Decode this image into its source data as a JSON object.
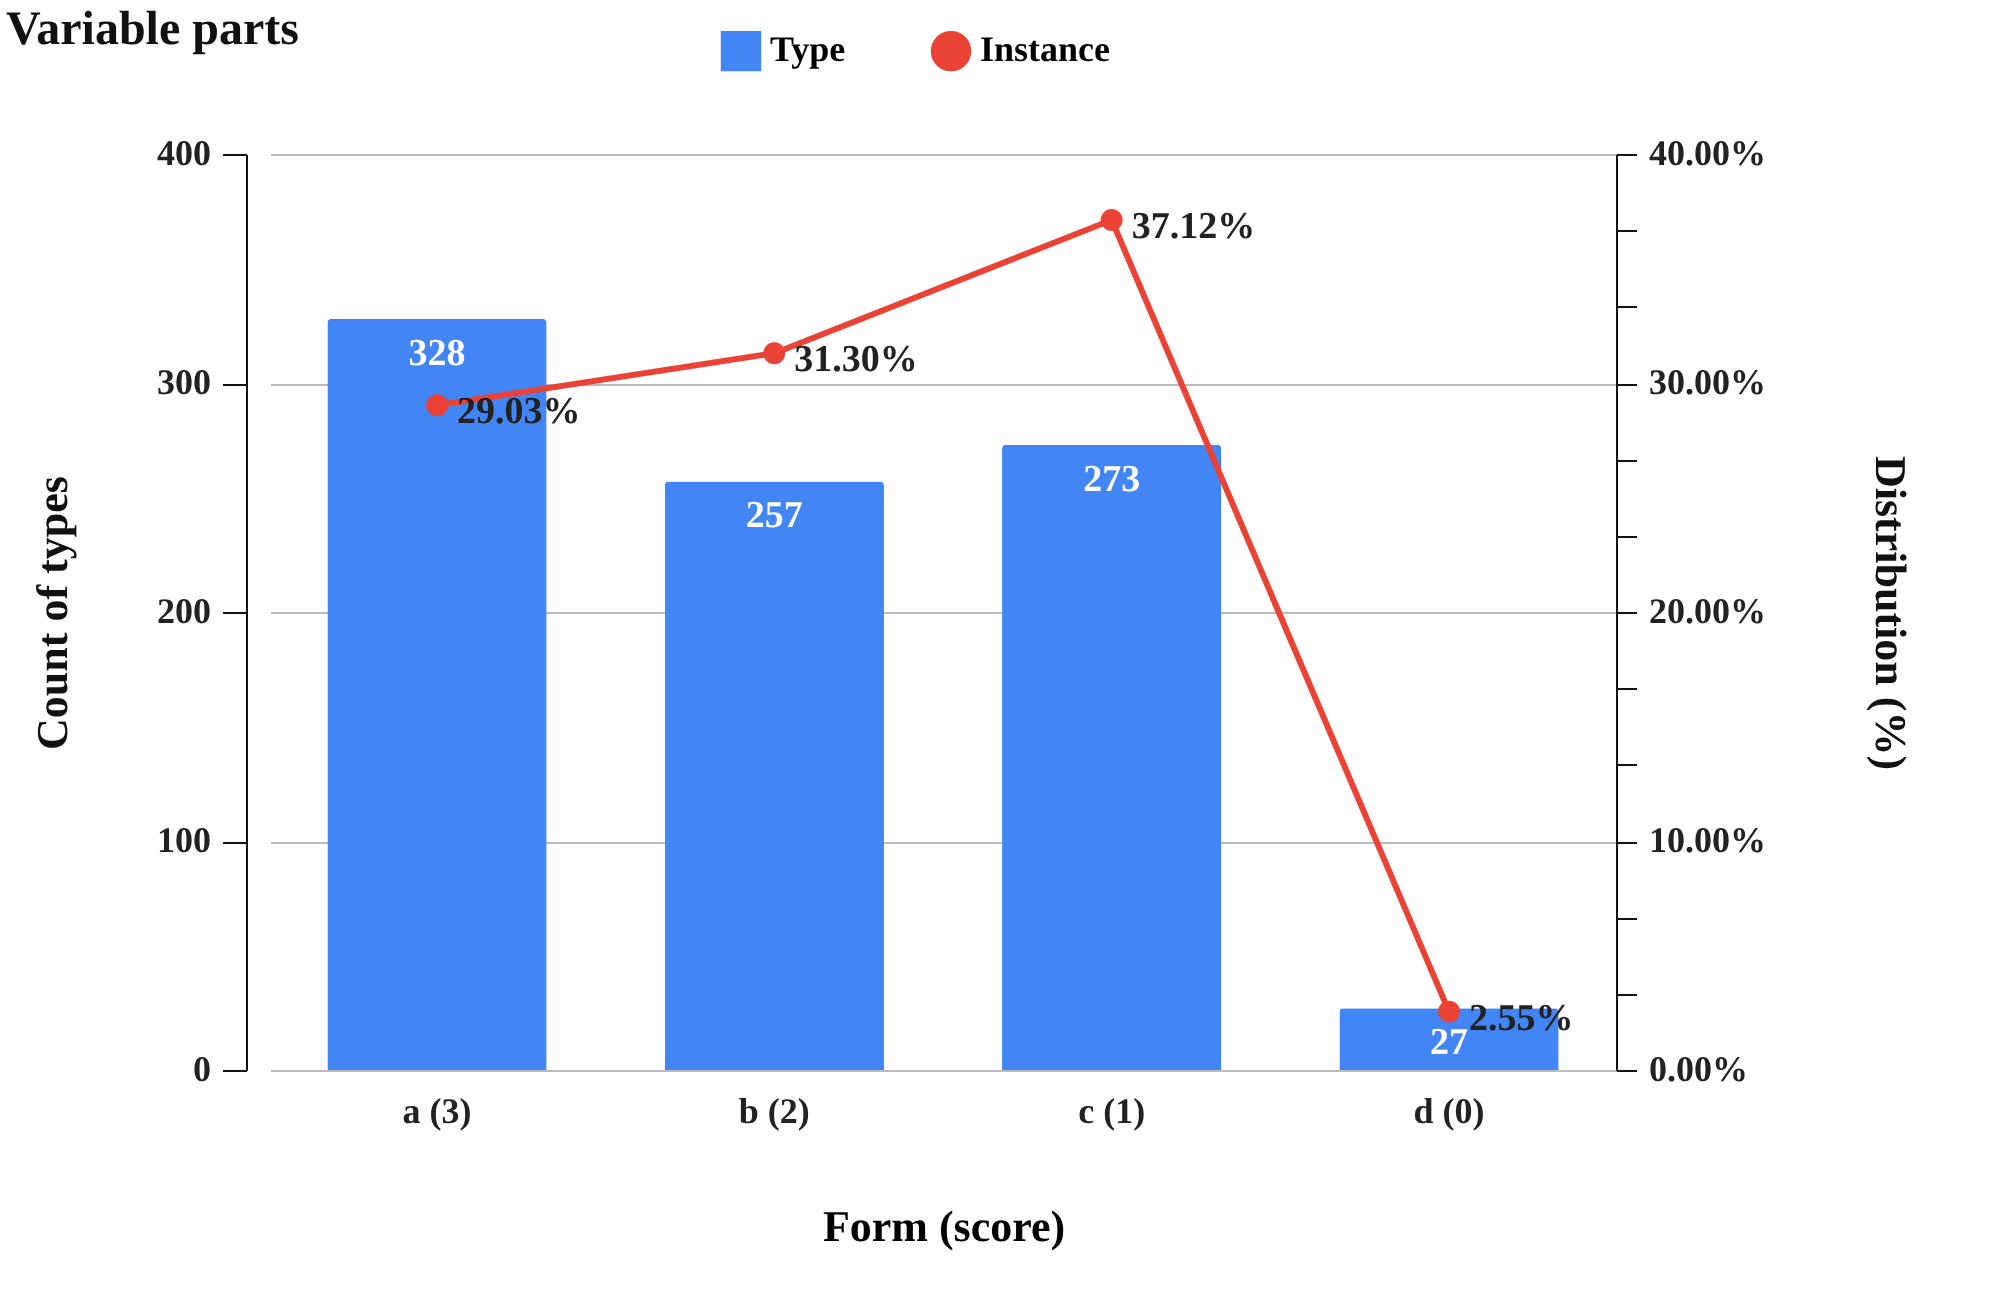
{
  "chart_data": {
    "type": "bar",
    "title": "Variable parts",
    "xlabel": "Form (score)",
    "ylabel": "Count of types",
    "y2label": "Distribution (%)",
    "categories": [
      "a (3)",
      "b (2)",
      "c (1)",
      "d (0)"
    ],
    "series": [
      {
        "name": "Type",
        "type": "bar",
        "color": "#4285f4",
        "values": [
          328,
          257,
          273,
          27
        ],
        "value_labels": [
          "328",
          "257",
          "273",
          "27"
        ]
      },
      {
        "name": "Instance",
        "type": "line",
        "axis": "y2",
        "color": "#ea4335",
        "values": [
          29.03,
          31.3,
          37.12,
          2.55
        ],
        "value_labels": [
          "29.03%",
          "31.30%",
          "37.12%",
          "2.55%"
        ],
        "marker": "circle"
      }
    ],
    "ylim": [
      0,
      400
    ],
    "yticks": [
      0,
      100,
      200,
      300,
      400
    ],
    "y2lim": [
      0,
      40
    ],
    "y2ticks": [
      {
        "value": 0,
        "label": "0.00%"
      },
      {
        "value": 3.33,
        "label": null
      },
      {
        "value": 6.67,
        "label": null
      },
      {
        "value": 10,
        "label": "10.00%"
      },
      {
        "value": 13.33,
        "label": null
      },
      {
        "value": 16.67,
        "label": null
      },
      {
        "value": 20,
        "label": "20.00%"
      },
      {
        "value": 23.33,
        "label": null
      },
      {
        "value": 26.67,
        "label": null
      },
      {
        "value": 30,
        "label": "30.00%"
      },
      {
        "value": 33.33,
        "label": null
      },
      {
        "value": 36.67,
        "label": null
      },
      {
        "value": 40,
        "label": "40.00%"
      }
    ],
    "grid": "y",
    "legend": "top"
  }
}
